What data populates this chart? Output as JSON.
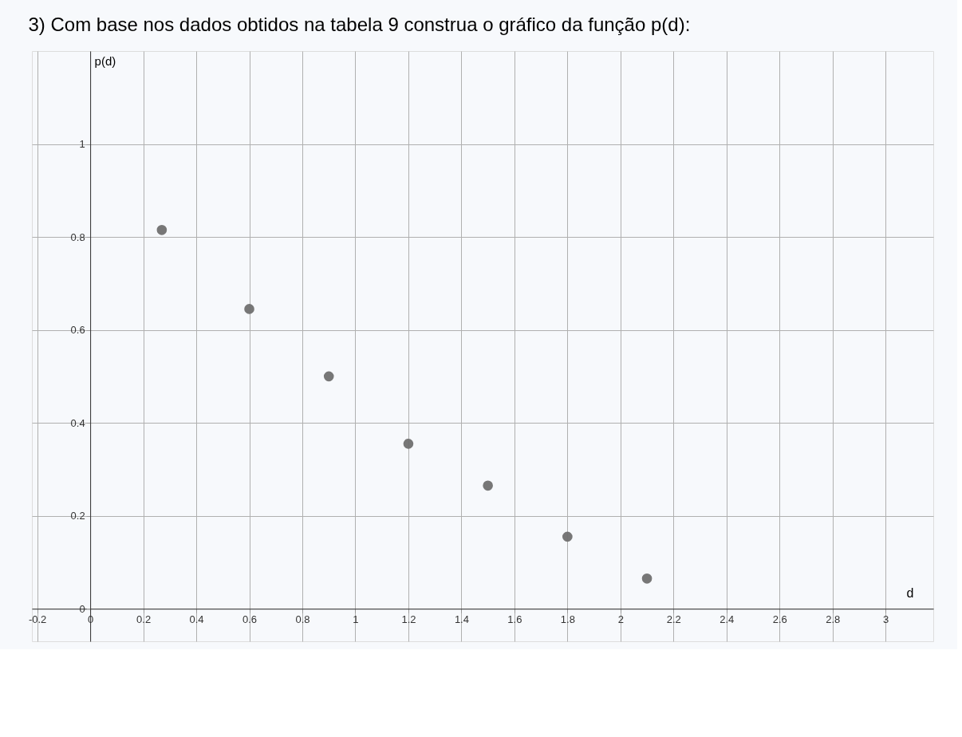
{
  "chart_data": {
    "type": "scatter",
    "title": "3) Com base nos dados obtidos na tabela 9 construa o gráfico da função p(d):",
    "xlabel": "d",
    "ylabel": "p(d)",
    "x": [
      0.27,
      0.6,
      0.9,
      1.2,
      1.5,
      1.8,
      2.1
    ],
    "series": [
      {
        "color": "#707070",
        "values": [
          0.815,
          0.645,
          0.5,
          0.355,
          0.265,
          0.155,
          0.065
        ]
      }
    ],
    "xlim": [
      -0.22,
      3.18
    ],
    "ylim": [
      -0.07,
      1.2
    ],
    "xticks": [
      -0.2,
      0,
      0.2,
      0.4,
      0.6,
      0.8,
      1,
      1.2,
      1.4,
      1.6,
      1.8,
      2,
      2.2,
      2.4,
      2.6,
      2.8,
      3
    ],
    "yticks": [
      0,
      0.2,
      0.4,
      0.6,
      0.8,
      1
    ],
    "grid": true,
    "marker": "circle"
  }
}
